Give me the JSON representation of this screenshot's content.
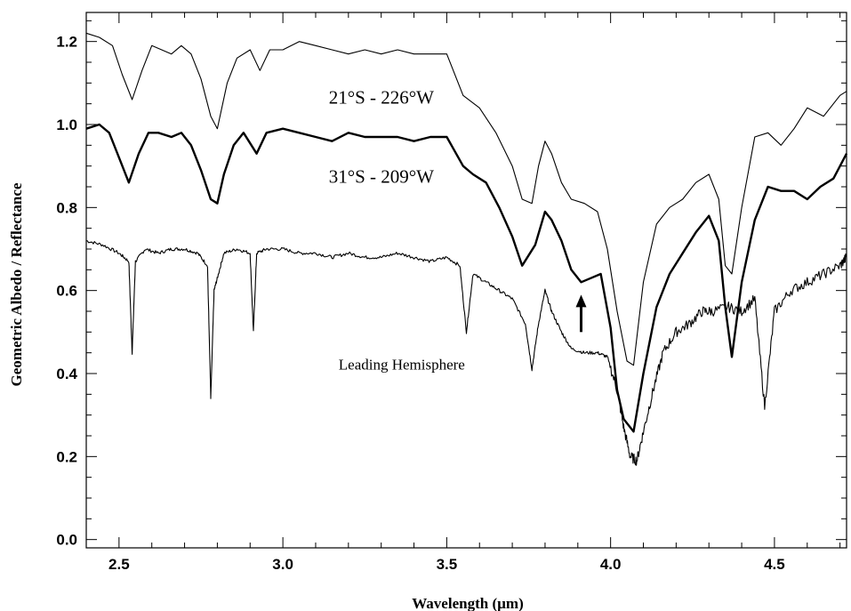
{
  "chart_data": {
    "type": "line",
    "xlabel": "Wavelength (µm)",
    "ylabel": "Geometric Albedo / Reflectance",
    "xlim": [
      2.4,
      4.72
    ],
    "ylim": [
      -0.02,
      1.27
    ],
    "xticks": [
      2.5,
      3.0,
      3.5,
      4.0,
      4.5
    ],
    "xtick_labels": [
      "2.5",
      "3.0",
      "3.5",
      "4.0",
      "4.5"
    ],
    "yticks": [
      0.0,
      0.2,
      0.4,
      0.6,
      0.8,
      1.0,
      1.2
    ],
    "ytick_labels": [
      "0.0",
      "0.2",
      "0.4",
      "0.6",
      "0.8",
      "1.0",
      "1.2"
    ],
    "grid": false,
    "series": [
      {
        "label": "21°S - 226°W",
        "style": "thin",
        "x": [
          2.4,
          2.44,
          2.48,
          2.51,
          2.54,
          2.57,
          2.6,
          2.63,
          2.66,
          2.69,
          2.72,
          2.75,
          2.78,
          2.8,
          2.83,
          2.86,
          2.9,
          2.93,
          2.96,
          3.0,
          3.05,
          3.1,
          3.15,
          3.2,
          3.25,
          3.3,
          3.35,
          3.4,
          3.45,
          3.5,
          3.55,
          3.6,
          3.65,
          3.7,
          3.73,
          3.76,
          3.78,
          3.8,
          3.82,
          3.85,
          3.88,
          3.92,
          3.96,
          3.99,
          4.02,
          4.05,
          4.07,
          4.1,
          4.14,
          4.18,
          4.22,
          4.26,
          4.3,
          4.33,
          4.35,
          4.37,
          4.4,
          4.44,
          4.48,
          4.52,
          4.56,
          4.6,
          4.65,
          4.7,
          4.72
        ],
        "y": [
          1.22,
          1.21,
          1.19,
          1.12,
          1.06,
          1.13,
          1.19,
          1.18,
          1.17,
          1.19,
          1.17,
          1.11,
          1.02,
          0.99,
          1.1,
          1.16,
          1.18,
          1.13,
          1.18,
          1.18,
          1.2,
          1.19,
          1.18,
          1.17,
          1.18,
          1.17,
          1.18,
          1.17,
          1.17,
          1.17,
          1.07,
          1.04,
          0.98,
          0.9,
          0.82,
          0.81,
          0.9,
          0.96,
          0.93,
          0.86,
          0.82,
          0.81,
          0.79,
          0.7,
          0.55,
          0.43,
          0.42,
          0.62,
          0.76,
          0.8,
          0.82,
          0.86,
          0.88,
          0.82,
          0.66,
          0.64,
          0.8,
          0.97,
          0.98,
          0.95,
          0.99,
          1.04,
          1.02,
          1.07,
          1.08
        ]
      },
      {
        "label": "31°S - 209°W",
        "style": "thick",
        "x": [
          2.4,
          2.44,
          2.47,
          2.5,
          2.53,
          2.56,
          2.59,
          2.62,
          2.66,
          2.69,
          2.72,
          2.75,
          2.78,
          2.8,
          2.82,
          2.85,
          2.88,
          2.92,
          2.95,
          3.0,
          3.05,
          3.1,
          3.15,
          3.2,
          3.25,
          3.3,
          3.35,
          3.4,
          3.45,
          3.5,
          3.55,
          3.58,
          3.62,
          3.66,
          3.7,
          3.73,
          3.77,
          3.8,
          3.82,
          3.85,
          3.88,
          3.91,
          3.94,
          3.97,
          4.0,
          4.02,
          4.04,
          4.07,
          4.1,
          4.14,
          4.18,
          4.22,
          4.26,
          4.3,
          4.33,
          4.35,
          4.37,
          4.4,
          4.44,
          4.48,
          4.52,
          4.56,
          4.6,
          4.64,
          4.68,
          4.72
        ],
        "y": [
          0.99,
          1.0,
          0.98,
          0.92,
          0.86,
          0.93,
          0.98,
          0.98,
          0.97,
          0.98,
          0.95,
          0.89,
          0.82,
          0.81,
          0.88,
          0.95,
          0.98,
          0.93,
          0.98,
          0.99,
          0.98,
          0.97,
          0.96,
          0.98,
          0.97,
          0.97,
          0.97,
          0.96,
          0.97,
          0.97,
          0.9,
          0.88,
          0.86,
          0.8,
          0.73,
          0.66,
          0.71,
          0.79,
          0.77,
          0.72,
          0.65,
          0.62,
          0.63,
          0.64,
          0.51,
          0.36,
          0.29,
          0.26,
          0.4,
          0.56,
          0.64,
          0.69,
          0.74,
          0.78,
          0.72,
          0.56,
          0.44,
          0.62,
          0.77,
          0.85,
          0.84,
          0.84,
          0.82,
          0.85,
          0.87,
          0.93
        ]
      },
      {
        "label": "Leading Hemisphere",
        "style": "noisy",
        "x": [
          2.4,
          2.45,
          2.5,
          2.53,
          2.54,
          2.55,
          2.58,
          2.62,
          2.66,
          2.7,
          2.74,
          2.77,
          2.78,
          2.79,
          2.8,
          2.82,
          2.86,
          2.9,
          2.91,
          2.92,
          2.95,
          3.0,
          3.05,
          3.1,
          3.15,
          3.2,
          3.25,
          3.3,
          3.35,
          3.4,
          3.45,
          3.5,
          3.54,
          3.56,
          3.58,
          3.62,
          3.66,
          3.7,
          3.74,
          3.76,
          3.78,
          3.8,
          3.82,
          3.85,
          3.88,
          3.92,
          3.96,
          3.99,
          4.02,
          4.04,
          4.06,
          4.08,
          4.1,
          4.13,
          4.16,
          4.2,
          4.24,
          4.28,
          4.31,
          4.36,
          4.4,
          4.44,
          4.47,
          4.5,
          4.55,
          4.6,
          4.65,
          4.7,
          4.72
        ],
        "y": [
          0.72,
          0.71,
          0.69,
          0.67,
          0.45,
          0.67,
          0.7,
          0.69,
          0.7,
          0.7,
          0.69,
          0.66,
          0.34,
          0.6,
          0.63,
          0.69,
          0.7,
          0.69,
          0.5,
          0.69,
          0.7,
          0.7,
          0.69,
          0.69,
          0.68,
          0.69,
          0.68,
          0.68,
          0.69,
          0.68,
          0.67,
          0.68,
          0.66,
          0.5,
          0.64,
          0.62,
          0.6,
          0.58,
          0.52,
          0.41,
          0.52,
          0.6,
          0.55,
          0.5,
          0.46,
          0.45,
          0.45,
          0.44,
          0.36,
          0.27,
          0.2,
          0.19,
          0.26,
          0.36,
          0.45,
          0.5,
          0.52,
          0.55,
          0.55,
          0.56,
          0.55,
          0.58,
          0.32,
          0.55,
          0.6,
          0.62,
          0.64,
          0.66,
          0.68
        ]
      }
    ],
    "annotations": [
      {
        "text": "21°S - 226°W",
        "x": 3.14,
        "y": 1.05,
        "size": "large"
      },
      {
        "text": "31°S - 209°W",
        "x": 3.14,
        "y": 0.86,
        "size": "large"
      },
      {
        "text": "Leading Hemisphere",
        "x": 3.17,
        "y": 0.41,
        "size": "small"
      }
    ],
    "arrow": {
      "x": 3.91,
      "y_from": 0.5,
      "y_to": 0.59
    }
  }
}
